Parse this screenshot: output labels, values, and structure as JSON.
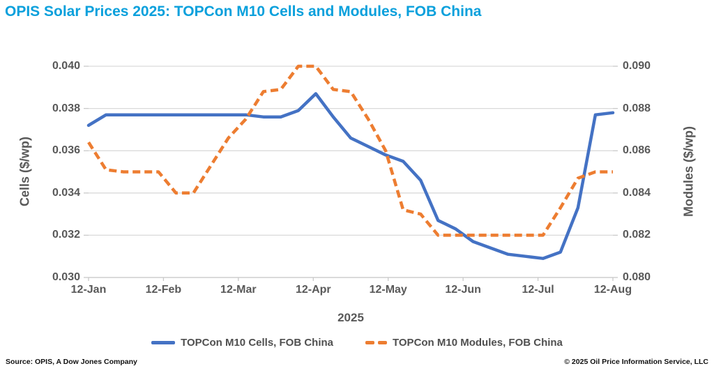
{
  "header": {
    "title": "OPIS Solar Prices 2025: TOPCon M10 Cells and Modules, FOB China"
  },
  "footer": {
    "source": "Source: OPIS, A Dow Jones Company",
    "copyright": "© 2025 Oil Price Information Service, LLC"
  },
  "colors": {
    "title": "#0AA0DC",
    "axis_text": "#595959",
    "gridline": "#D9D9D9",
    "tick_mark": "#C9C9C9",
    "cells_line": "#4472C4",
    "modules_line": "#ED7D31"
  },
  "chart_data": {
    "type": "line",
    "title": "OPIS Solar Prices 2025: TOPCon M10 Cells and Modules, FOB China",
    "xlabel": "2025",
    "grid": "horizontal",
    "legend_position": "bottom",
    "x_tick_labels": [
      "12-Jan",
      "12-Feb",
      "12-Mar",
      "12-Apr",
      "12-May",
      "12-Jun",
      "12-Jul",
      "12-Aug"
    ],
    "x": [
      "12-Jan",
      "19-Jan",
      "26-Jan",
      "2-Feb",
      "9-Feb",
      "16-Feb",
      "23-Feb",
      "2-Mar",
      "9-Mar",
      "16-Mar",
      "23-Mar",
      "30-Mar",
      "6-Apr",
      "13-Apr",
      "20-Apr",
      "27-Apr",
      "4-May",
      "11-May",
      "18-May",
      "25-May",
      "1-Jun",
      "8-Jun",
      "15-Jun",
      "22-Jun",
      "29-Jun",
      "6-Jul",
      "13-Jul",
      "20-Jul",
      "27-Jul",
      "3-Aug",
      "10-Aug"
    ],
    "left_axis": {
      "label": "Cells ($/wp)",
      "min": 0.03,
      "max": 0.04,
      "tick_values": [
        0.04,
        0.038,
        0.036,
        0.034,
        0.032,
        0.03
      ],
      "tick_labels": [
        "0.040",
        "0.038",
        "0.036",
        "0.034",
        "0.032",
        "0.030"
      ]
    },
    "right_axis": {
      "label": "Modules ($/wp)",
      "min": 0.08,
      "max": 0.09,
      "tick_values": [
        0.09,
        0.088,
        0.086,
        0.084,
        0.082,
        0.08
      ],
      "tick_labels": [
        "0.090",
        "0.088",
        "0.086",
        "0.084",
        "0.082",
        "0.080"
      ]
    },
    "series": [
      {
        "name": "TOPCon M10 Cells, FOB China",
        "axis": "left",
        "color": "#4472C4",
        "line_style": "solid",
        "values": [
          0.0372,
          0.0377,
          0.0377,
          0.0377,
          0.0377,
          0.0377,
          0.0377,
          0.0377,
          0.0377,
          0.0377,
          0.0376,
          0.0376,
          0.0379,
          0.0387,
          0.0376,
          0.0366,
          0.0362,
          0.0358,
          0.0355,
          0.0346,
          0.0327,
          0.0323,
          0.0317,
          0.0314,
          0.0311,
          0.031,
          0.0309,
          0.0312,
          0.0333,
          0.0377,
          0.0378
        ]
      },
      {
        "name": "TOPCon M10 Modules, FOB China",
        "axis": "right",
        "color": "#ED7D31",
        "line_style": "dashed",
        "values": [
          0.0864,
          0.0851,
          0.085,
          0.085,
          0.085,
          0.084,
          0.084,
          0.0853,
          0.0866,
          0.0875,
          0.0888,
          0.0889,
          0.09,
          0.09,
          0.0889,
          0.0888,
          0.0875,
          0.086,
          0.0832,
          0.083,
          0.082,
          0.082,
          0.082,
          0.082,
          0.082,
          0.082,
          0.082,
          0.0833,
          0.0847,
          0.085,
          0.085
        ]
      }
    ]
  }
}
